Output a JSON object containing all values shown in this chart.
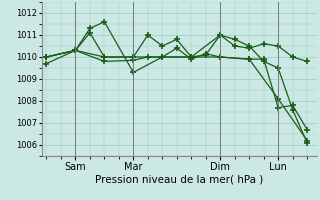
{
  "bg_color": "#cce8e4",
  "grid_color": "#99ccbb",
  "line_color": "#1a5c1a",
  "marker_color": "#1a5c1a",
  "xlabel": "Pression niveau de la mer( hPa )",
  "ylim": [
    1005.5,
    1012.5
  ],
  "yticks": [
    1006,
    1007,
    1008,
    1009,
    1010,
    1011,
    1012
  ],
  "x_ticks_labels": [
    "Sam",
    "Mar",
    "Dim",
    "Lun"
  ],
  "x_ticks_pos": [
    12,
    36,
    72,
    96
  ],
  "series1_x": [
    0,
    12,
    18,
    24,
    36,
    48,
    60,
    72,
    78,
    84,
    90,
    96,
    102,
    108
  ],
  "series1_y": [
    1009.7,
    1010.3,
    1011.3,
    1011.6,
    1009.3,
    1010.0,
    1010.0,
    1011.0,
    1010.8,
    1010.5,
    1009.8,
    1009.5,
    1007.6,
    1006.1
  ],
  "series2_x": [
    0,
    12,
    18,
    24,
    36,
    42,
    48,
    54,
    60,
    66,
    72,
    78,
    84,
    90,
    96,
    102,
    108
  ],
  "series2_y": [
    1010.0,
    1010.3,
    1011.1,
    1010.0,
    1010.0,
    1011.0,
    1010.5,
    1010.8,
    1010.0,
    1010.1,
    1011.0,
    1010.5,
    1010.4,
    1010.6,
    1010.5,
    1010.0,
    1009.8
  ],
  "series3_x": [
    0,
    12,
    24,
    36,
    42,
    48,
    54,
    60,
    66,
    72,
    84,
    90,
    96,
    102,
    108
  ],
  "series3_y": [
    1010.0,
    1010.3,
    1009.8,
    1009.85,
    1010.0,
    1010.0,
    1010.4,
    1009.9,
    1010.15,
    1010.0,
    1009.9,
    1009.9,
    1007.7,
    1007.8,
    1006.7
  ],
  "series4_x": [
    0,
    12,
    24,
    36,
    48,
    60,
    72,
    84,
    96,
    108
  ],
  "series4_y": [
    1010.0,
    1010.3,
    1010.0,
    1010.0,
    1010.0,
    1010.0,
    1010.0,
    1009.9,
    1008.1,
    1006.2
  ],
  "vline_positions": [
    12,
    36,
    72,
    96
  ],
  "xlim": [
    -2,
    112
  ]
}
